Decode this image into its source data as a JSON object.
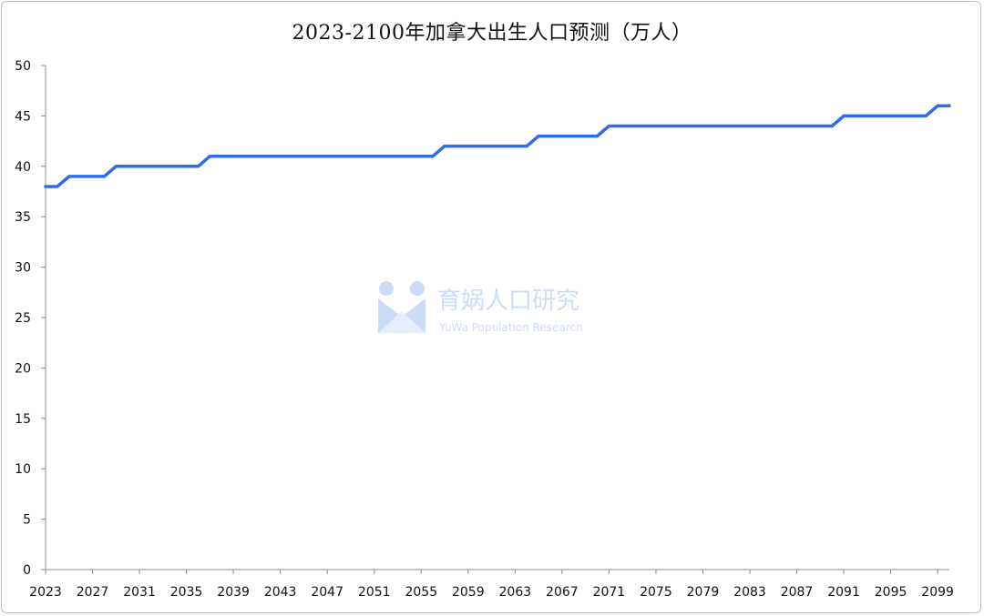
{
  "chart_data": {
    "type": "line",
    "title": "2023-2100年加拿大出生人口预测（万人）",
    "xlabel": "",
    "ylabel": "",
    "ylim": [
      0,
      50
    ],
    "yticks": [
      0,
      5,
      10,
      15,
      20,
      25,
      30,
      35,
      40,
      45,
      50
    ],
    "xlim": [
      2023,
      2100
    ],
    "xticks": [
      2023,
      2027,
      2031,
      2035,
      2039,
      2043,
      2047,
      2051,
      2055,
      2059,
      2063,
      2067,
      2071,
      2075,
      2079,
      2083,
      2087,
      2091,
      2095,
      2099
    ],
    "grid": false,
    "legend": "none",
    "series": [
      {
        "color": "#2f6bec",
        "x": [
          2023,
          2024,
          2025,
          2026,
          2027,
          2028,
          2029,
          2030,
          2031,
          2032,
          2033,
          2034,
          2035,
          2036,
          2037,
          2038,
          2039,
          2040,
          2041,
          2042,
          2043,
          2044,
          2045,
          2046,
          2047,
          2048,
          2049,
          2050,
          2051,
          2052,
          2053,
          2054,
          2055,
          2056,
          2057,
          2058,
          2059,
          2060,
          2061,
          2062,
          2063,
          2064,
          2065,
          2066,
          2067,
          2068,
          2069,
          2070,
          2071,
          2072,
          2073,
          2074,
          2075,
          2076,
          2077,
          2078,
          2079,
          2080,
          2081,
          2082,
          2083,
          2084,
          2085,
          2086,
          2087,
          2088,
          2089,
          2090,
          2091,
          2092,
          2093,
          2094,
          2095,
          2096,
          2097,
          2098,
          2099,
          2100
        ],
        "values": [
          38,
          38,
          39,
          39,
          39,
          39,
          40,
          40,
          40,
          40,
          40,
          40,
          40,
          40,
          41,
          41,
          41,
          41,
          41,
          41,
          41,
          41,
          41,
          41,
          41,
          41,
          41,
          41,
          41,
          41,
          41,
          41,
          41,
          41,
          42,
          42,
          42,
          42,
          42,
          42,
          42,
          42,
          43,
          43,
          43,
          43,
          43,
          43,
          44,
          44,
          44,
          44,
          44,
          44,
          44,
          44,
          44,
          44,
          44,
          44,
          44,
          44,
          44,
          44,
          44,
          44,
          44,
          44,
          45,
          45,
          45,
          45,
          45,
          45,
          45,
          45,
          46,
          46
        ]
      }
    ]
  },
  "watermark": {
    "brand": "育娲人口研究",
    "tagline": "YuWa Population Research",
    "color": "#8fb1ec"
  }
}
